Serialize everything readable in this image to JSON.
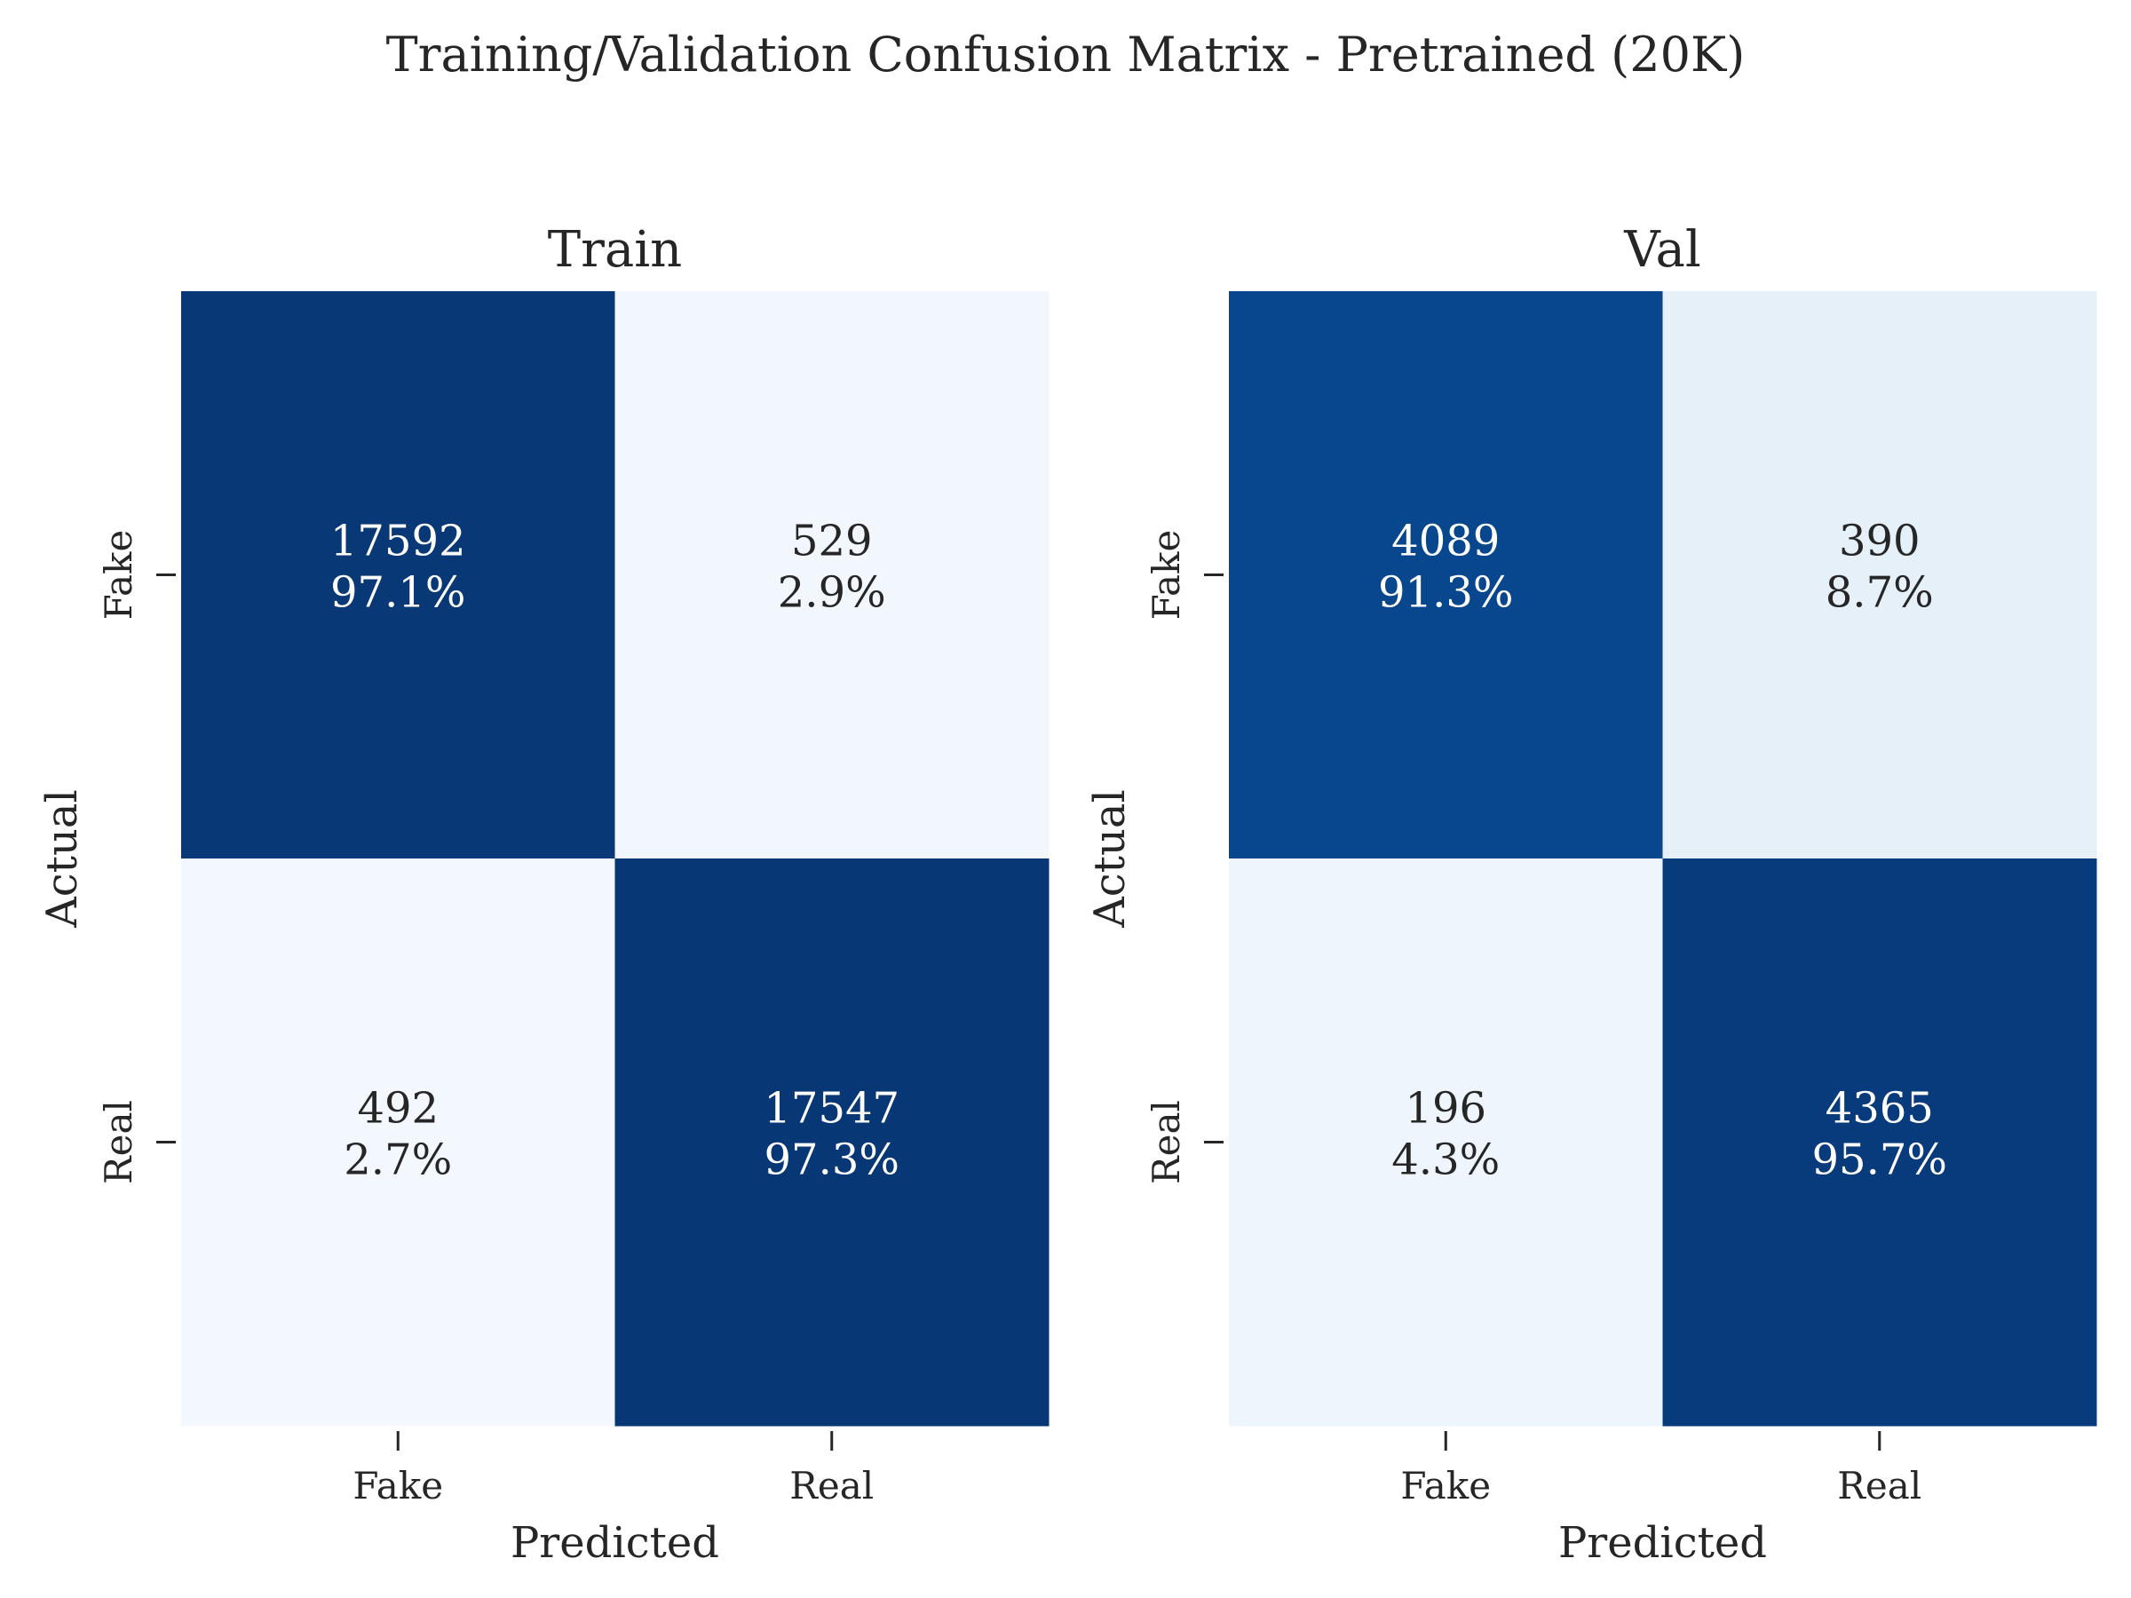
{
  "figure": {
    "title": "Training/Validation Confusion Matrix - Pretrained (20K)"
  },
  "chart_data": [
    {
      "type": "heatmap",
      "title": "Train",
      "xlabel": "Predicted",
      "ylabel": "Actual",
      "x_categories": [
        "Fake",
        "Real"
      ],
      "y_categories": [
        "Fake",
        "Real"
      ],
      "counts": [
        [
          17592,
          529
        ],
        [
          492,
          17547
        ]
      ],
      "percent_labels": [
        [
          "97.1%",
          "2.9%"
        ],
        [
          "2.7%",
          "97.3%"
        ]
      ],
      "count_labels": [
        [
          "17592",
          "529"
        ],
        [
          "492",
          "17547"
        ]
      ],
      "row_fractions": [
        [
          0.971,
          0.029
        ],
        [
          0.027,
          0.973
        ]
      ],
      "colormap": "Blues",
      "colors": {
        "dark": "#08306b",
        "light": "#f7fbff"
      },
      "grid": false,
      "colorbar": false
    },
    {
      "type": "heatmap",
      "title": "Val",
      "xlabel": "Predicted",
      "ylabel": "Actual",
      "x_categories": [
        "Fake",
        "Real"
      ],
      "y_categories": [
        "Fake",
        "Real"
      ],
      "counts": [
        [
          4089,
          390
        ],
        [
          196,
          4365
        ]
      ],
      "percent_labels": [
        [
          "91.3%",
          "8.7%"
        ],
        [
          "4.3%",
          "95.7%"
        ]
      ],
      "count_labels": [
        [
          "4089",
          "390"
        ],
        [
          "196",
          "4365"
        ]
      ],
      "row_fractions": [
        [
          0.913,
          0.087
        ],
        [
          0.043,
          0.957
        ]
      ],
      "colormap": "Blues",
      "colors": {
        "dark": "#08306b",
        "light": "#f7fbff"
      },
      "grid": false,
      "colorbar": false
    }
  ]
}
